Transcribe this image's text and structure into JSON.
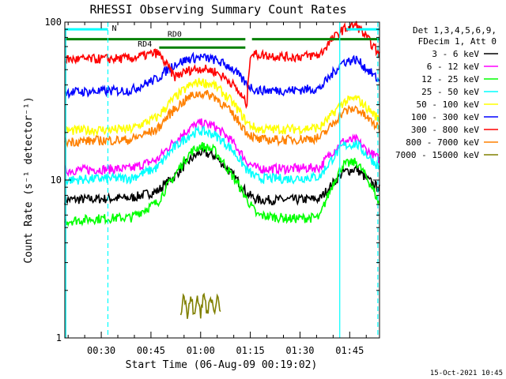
{
  "chart_data": {
    "type": "line",
    "title": "RHESSI Observing Summary Count Rates",
    "xlabel": "Start Time (06-Aug-09 00:19:02)",
    "ylabel": "Count Rate (s⁻¹ detector⁻¹)",
    "yscale": "log",
    "ylim": [
      1,
      100
    ],
    "y_ticks": [
      "1",
      "10",
      "100"
    ],
    "xlim_minutes_after_0019": [
      0,
      95
    ],
    "x_ticks": [
      {
        "label": "00:30",
        "minute": 11
      },
      {
        "label": "00:45",
        "minute": 26
      },
      {
        "label": "01:00",
        "minute": 41
      },
      {
        "label": "01:15",
        "minute": 56
      },
      {
        "label": "01:30",
        "minute": 71
      },
      {
        "label": "01:45",
        "minute": 86
      }
    ],
    "legend": {
      "placement": "right",
      "header_lines": [
        "Det 1,3,4,5,6,9,",
        "FDecim 1, Att 0"
      ]
    },
    "series": [
      {
        "name": "3 - 6 keV",
        "color": "#000000",
        "points": [
          [
            0,
            7.5
          ],
          [
            10,
            7.6
          ],
          [
            20,
            7.7
          ],
          [
            28,
            8.5
          ],
          [
            33,
            10.5
          ],
          [
            38,
            13.5
          ],
          [
            41,
            15
          ],
          [
            45,
            14.3
          ],
          [
            50,
            11.2
          ],
          [
            55,
            8.2
          ],
          [
            58,
            7.5
          ],
          [
            68,
            7.5
          ],
          [
            77,
            7.6
          ],
          [
            80,
            9
          ],
          [
            84,
            11.2
          ],
          [
            88,
            11.8
          ],
          [
            91,
            10.2
          ],
          [
            95,
            8.8
          ]
        ]
      },
      {
        "name": "6 - 12 keV",
        "color": "#ff00ff",
        "points": [
          [
            0,
            11.5
          ],
          [
            10,
            11.7
          ],
          [
            20,
            11.8
          ],
          [
            28,
            13.5
          ],
          [
            33,
            17.5
          ],
          [
            38,
            21.5
          ],
          [
            41,
            23
          ],
          [
            45,
            22
          ],
          [
            50,
            18
          ],
          [
            55,
            13
          ],
          [
            58,
            11.8
          ],
          [
            68,
            11.8
          ],
          [
            77,
            12
          ],
          [
            80,
            14.5
          ],
          [
            84,
            17.5
          ],
          [
            88,
            18
          ],
          [
            91,
            15.5
          ],
          [
            95,
            13.5
          ]
        ]
      },
      {
        "name": "12 - 25 keV",
        "color": "#00ff00",
        "points": [
          [
            0,
            5.5
          ],
          [
            10,
            5.7
          ],
          [
            20,
            5.8
          ],
          [
            28,
            7.2
          ],
          [
            33,
            10.5
          ],
          [
            38,
            15
          ],
          [
            41,
            16.5
          ],
          [
            45,
            15.5
          ],
          [
            50,
            11
          ],
          [
            55,
            7.5
          ],
          [
            58,
            6
          ],
          [
            68,
            5.7
          ],
          [
            77,
            5.8
          ],
          [
            80,
            8.5
          ],
          [
            84,
            12.5
          ],
          [
            88,
            13
          ],
          [
            91,
            10.5
          ],
          [
            95,
            7
          ]
        ]
      },
      {
        "name": "25 - 50 keV",
        "color": "#00ffff",
        "points": [
          [
            0,
            10
          ],
          [
            10,
            10.2
          ],
          [
            20,
            10.3
          ],
          [
            28,
            12
          ],
          [
            33,
            16
          ],
          [
            38,
            19.5
          ],
          [
            41,
            20.5
          ],
          [
            45,
            19.5
          ],
          [
            50,
            16
          ],
          [
            55,
            11.5
          ],
          [
            58,
            10.3
          ],
          [
            68,
            10.2
          ],
          [
            77,
            10.5
          ],
          [
            80,
            13
          ],
          [
            84,
            16.5
          ],
          [
            88,
            17
          ],
          [
            91,
            14.5
          ],
          [
            95,
            12
          ]
        ]
      },
      {
        "name": "50 - 100 keV",
        "color": "#ffff00",
        "points": [
          [
            0,
            20.5
          ],
          [
            10,
            20.8
          ],
          [
            20,
            21
          ],
          [
            28,
            25
          ],
          [
            33,
            33
          ],
          [
            38,
            40
          ],
          [
            41,
            42
          ],
          [
            45,
            40
          ],
          [
            50,
            32
          ],
          [
            55,
            23
          ],
          [
            58,
            21
          ],
          [
            68,
            21
          ],
          [
            77,
            21.5
          ],
          [
            80,
            25
          ],
          [
            84,
            31
          ],
          [
            88,
            33
          ],
          [
            91,
            29
          ],
          [
            95,
            24
          ]
        ]
      },
      {
        "name": "100 - 300 keV",
        "color": "#0000ff",
        "points": [
          [
            0,
            36
          ],
          [
            10,
            36.5
          ],
          [
            20,
            37
          ],
          [
            28,
            44
          ],
          [
            33,
            54
          ],
          [
            38,
            59
          ],
          [
            41,
            60
          ],
          [
            45,
            58
          ],
          [
            50,
            52
          ],
          [
            55,
            40
          ],
          [
            58,
            37
          ],
          [
            68,
            37
          ],
          [
            77,
            38
          ],
          [
            80,
            45
          ],
          [
            84,
            56
          ],
          [
            88,
            58
          ],
          [
            91,
            51
          ],
          [
            95,
            42
          ]
        ]
      },
      {
        "name": "300 - 800 keV",
        "color": "#ff0000",
        "points": [
          [
            0,
            58
          ],
          [
            10,
            58.5
          ],
          [
            20,
            59
          ],
          [
            28,
            64
          ],
          [
            33,
            45
          ],
          [
            38,
            50
          ],
          [
            41,
            51
          ],
          [
            45,
            49
          ],
          [
            50,
            42
          ],
          [
            55,
            30
          ],
          [
            56,
            63
          ],
          [
            68,
            60
          ],
          [
            77,
            62
          ],
          [
            80,
            75
          ],
          [
            84,
            90
          ],
          [
            88,
            96
          ],
          [
            91,
            80
          ],
          [
            95,
            62
          ]
        ]
      },
      {
        "name": "800 - 7000 keV",
        "color": "#ff8000",
        "points": [
          [
            0,
            17.5
          ],
          [
            10,
            17.8
          ],
          [
            20,
            18
          ],
          [
            28,
            21
          ],
          [
            33,
            28
          ],
          [
            38,
            34
          ],
          [
            41,
            35.5
          ],
          [
            45,
            34
          ],
          [
            50,
            27
          ],
          [
            55,
            20
          ],
          [
            58,
            18
          ],
          [
            68,
            18
          ],
          [
            77,
            18.5
          ],
          [
            80,
            21.5
          ],
          [
            84,
            27
          ],
          [
            88,
            28.5
          ],
          [
            91,
            25
          ],
          [
            95,
            21
          ]
        ]
      },
      {
        "name": "7000 - 15000 keV",
        "color": "#808000",
        "points": [
          [
            35,
            1.4
          ],
          [
            36,
            1.9
          ],
          [
            37,
            1.4
          ],
          [
            38,
            1.9
          ],
          [
            39,
            1.4
          ],
          [
            40,
            1.9
          ],
          [
            41,
            1.4
          ],
          [
            42,
            1.9
          ],
          [
            43,
            1.4
          ],
          [
            44,
            1.9
          ],
          [
            45,
            1.4
          ],
          [
            46,
            1.9
          ],
          [
            47,
            1.4
          ]
        ]
      }
    ],
    "annotations": {
      "flags": [
        {
          "label": "RD0",
          "color": "#008000"
        },
        {
          "label": "RD4",
          "color": "#008000"
        },
        {
          "label": "N",
          "color": "#00ffff"
        }
      ],
      "footer_date": "15-Oct-2021 10:45"
    }
  }
}
